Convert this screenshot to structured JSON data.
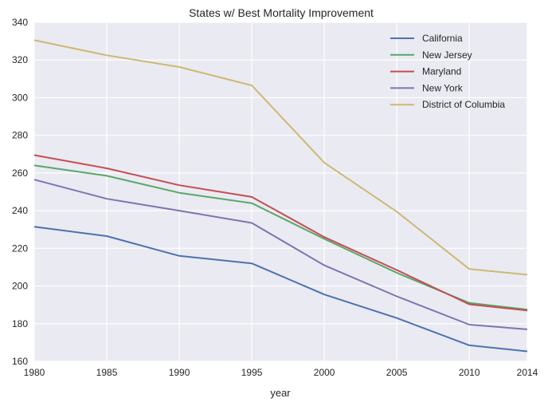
{
  "chart_data": {
    "type": "line",
    "title": "States w/ Best Mortality Improvement",
    "xlabel": "year",
    "ylabel": "",
    "x": [
      1980,
      1985,
      1990,
      1995,
      2000,
      2005,
      2010,
      2014
    ],
    "xticks": [
      1980,
      1985,
      1990,
      1995,
      2000,
      2005,
      2010,
      2014
    ],
    "xlim": [
      1980,
      2014
    ],
    "ylim": [
      160,
      340
    ],
    "yticks": [
      160,
      180,
      200,
      220,
      240,
      260,
      280,
      300,
      320,
      340
    ],
    "grid": true,
    "legend_position": "top-right",
    "series": [
      {
        "name": "California",
        "color": "#4c72b0",
        "values": [
          231.5,
          226.5,
          216,
          212,
          195.5,
          183,
          168.5,
          165.3
        ]
      },
      {
        "name": "New Jersey",
        "color": "#55a868",
        "values": [
          264,
          258.5,
          249.5,
          244,
          225,
          207,
          191,
          187.5
        ]
      },
      {
        "name": "Maryland",
        "color": "#c44e52",
        "values": [
          269.5,
          262.5,
          253.5,
          247.3,
          226,
          208.5,
          190.3,
          187
        ]
      },
      {
        "name": "New York",
        "color": "#8172b2",
        "values": [
          256.5,
          246.3,
          240,
          233.5,
          211,
          194.5,
          179.5,
          177
        ]
      },
      {
        "name": "District of Columbia",
        "color": "#ccb974",
        "values": [
          330.5,
          322.5,
          316.3,
          306.5,
          265.5,
          239.5,
          209,
          206
        ]
      }
    ]
  }
}
